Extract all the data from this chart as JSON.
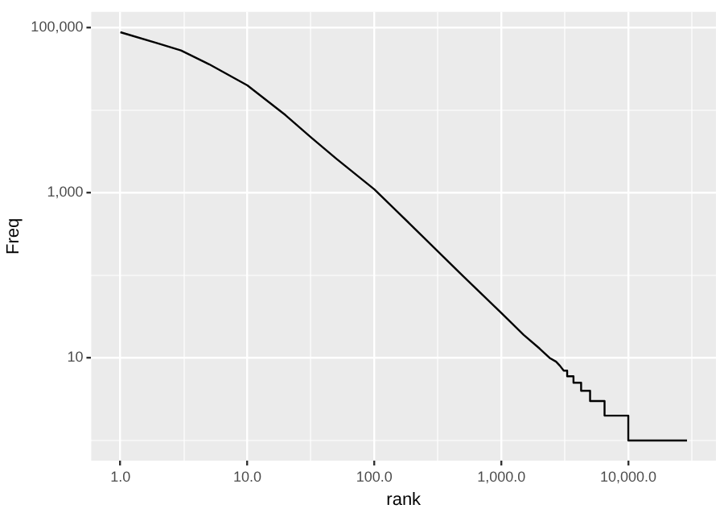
{
  "chart_data": {
    "type": "line",
    "xlabel": "rank",
    "ylabel": "Freq",
    "log": "xy",
    "grid": true,
    "legend": false,
    "marker": "none",
    "line_style": "solid",
    "xlim": [
      0.59,
      49000
    ],
    "ylim": [
      0.57,
      155000
    ],
    "xticks": [
      {
        "value": 1,
        "label": "1.0"
      },
      {
        "value": 3.162,
        "label": null
      },
      {
        "value": 10,
        "label": "10.0"
      },
      {
        "value": 31.62,
        "label": null
      },
      {
        "value": 100,
        "label": "100.0"
      },
      {
        "value": 316.2,
        "label": null
      },
      {
        "value": 1000,
        "label": "1,000.0"
      },
      {
        "value": 3162,
        "label": null
      },
      {
        "value": 10000,
        "label": "10,000.0"
      },
      {
        "value": 31620,
        "label": null
      }
    ],
    "yticks": [
      {
        "value": 1,
        "label": null
      },
      {
        "value": 10,
        "label": "10"
      },
      {
        "value": 100,
        "label": null
      },
      {
        "value": 1000,
        "label": "1,000"
      },
      {
        "value": 10000,
        "label": null
      },
      {
        "value": 100000,
        "label": "100,000"
      }
    ],
    "series": [
      {
        "color": "#000000",
        "x": [
          1,
          2,
          3,
          5,
          10,
          20,
          31.6,
          50,
          100,
          200,
          500,
          1000,
          1500,
          2000,
          2400,
          2700,
          2900,
          3100,
          3300,
          3300,
          3700,
          3700,
          4250,
          4250,
          5000,
          5000,
          6500,
          6500,
          10000,
          10000,
          29000
        ],
        "values": [
          88000,
          64000,
          53000,
          36000,
          20000,
          8700,
          4700,
          2600,
          1100,
          390,
          98,
          35,
          19,
          13,
          10,
          9,
          8,
          7,
          7,
          6,
          6,
          5,
          5,
          4,
          4,
          3,
          3,
          2,
          2,
          1,
          1
        ]
      }
    ]
  }
}
